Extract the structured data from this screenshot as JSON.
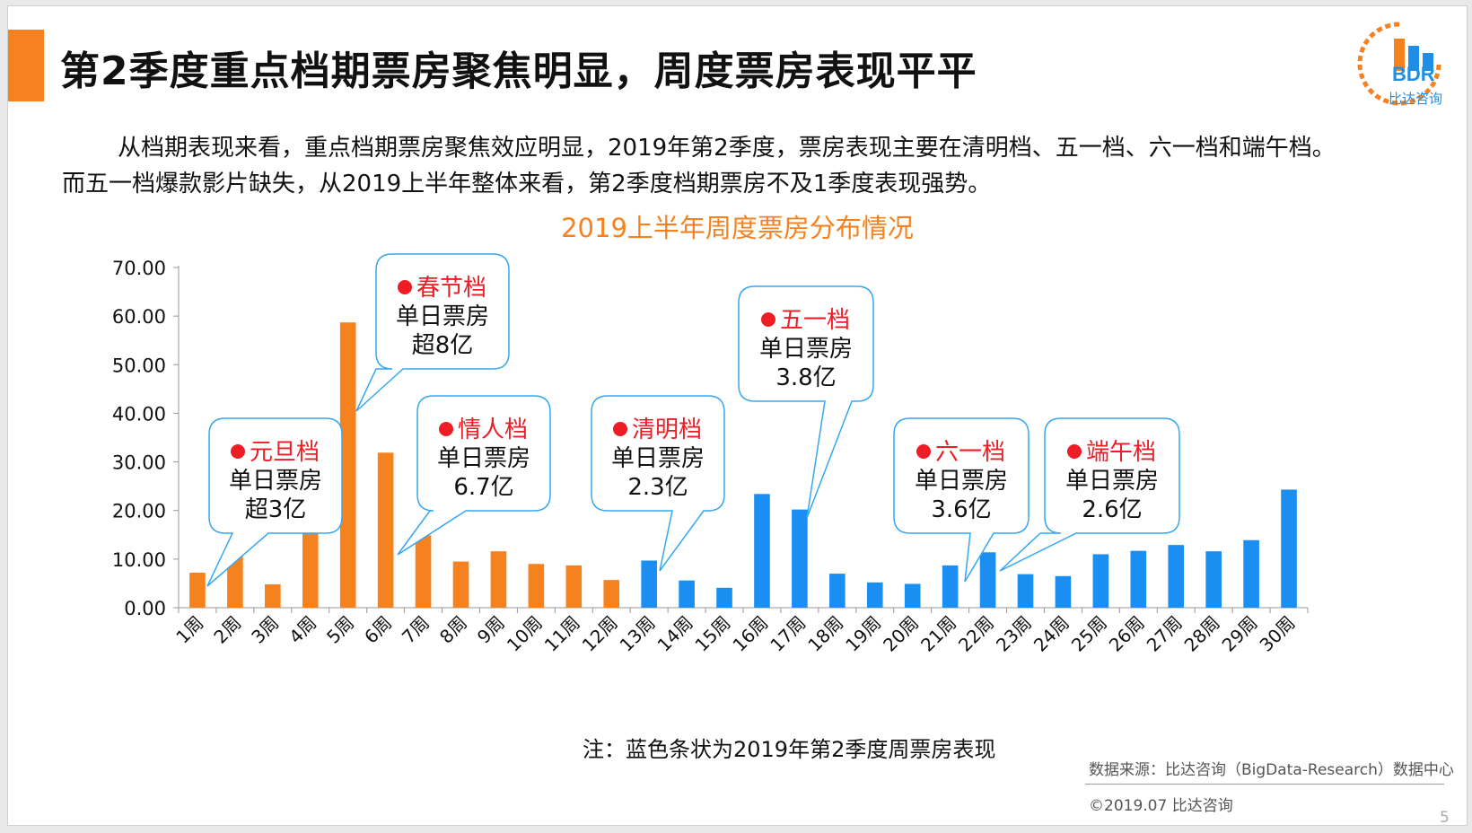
{
  "header": {
    "title": "第2季度重点档期票房聚焦明显，周度票房表现平平",
    "logo_text": "BDR",
    "logo_sub": "比达咨询"
  },
  "intro": {
    "line1": "从档期表现来看，重点档期票房聚焦效应明显，2019年第2季度，票房表现主要在清明档、五一档、六一档和端午档。",
    "line2": "而五一档爆款影片缺失，从2019上半年整体来看，第2季度档期票房不及1季度表现强势。"
  },
  "chart_data": {
    "type": "bar",
    "title": "2019上半年周度票房分布情况",
    "categories": [
      "1周",
      "2周",
      "3周",
      "4周",
      "5周",
      "6周",
      "7周",
      "8周",
      "9周",
      "10周",
      "11周",
      "12周",
      "13周",
      "14周",
      "15周",
      "16周",
      "17周",
      "18周",
      "19周",
      "20周",
      "21周",
      "22周",
      "23周",
      "24周",
      "25周",
      "26周",
      "27周",
      "28周",
      "29周",
      "30周"
    ],
    "values": [
      7.2,
      11.0,
      4.8,
      16.9,
      58.7,
      31.9,
      14.9,
      9.5,
      11.6,
      9.0,
      8.7,
      5.7,
      9.7,
      5.6,
      4.1,
      23.4,
      20.2,
      7.0,
      5.2,
      4.9,
      8.7,
      11.4,
      6.9,
      6.5,
      11.0,
      11.7,
      12.9,
      11.6,
      13.9,
      24.3
    ],
    "series_colors": [
      "#f5821f",
      "#f5821f",
      "#f5821f",
      "#f5821f",
      "#f5821f",
      "#f5821f",
      "#f5821f",
      "#f5821f",
      "#f5821f",
      "#f5821f",
      "#f5821f",
      "#f5821f",
      "#1b8ef2",
      "#1b8ef2",
      "#1b8ef2",
      "#1b8ef2",
      "#1b8ef2",
      "#1b8ef2",
      "#1b8ef2",
      "#1b8ef2",
      "#1b8ef2",
      "#1b8ef2",
      "#1b8ef2",
      "#1b8ef2",
      "#1b8ef2",
      "#1b8ef2",
      "#1b8ef2",
      "#1b8ef2",
      "#1b8ef2",
      "#1b8ef2"
    ],
    "ylim": [
      0,
      70
    ],
    "yticks": [
      "0.00",
      "10.00",
      "20.00",
      "30.00",
      "40.00",
      "50.00",
      "60.00",
      "70.00"
    ],
    "annotations": [
      {
        "holiday": "元旦档",
        "line2": "单日票房",
        "line3": "超3亿",
        "week": "1周"
      },
      {
        "holiday": "春节档",
        "line2": "单日票房",
        "line3": "超8亿",
        "week": "5周"
      },
      {
        "holiday": "情人档",
        "line2": "单日票房",
        "line3": "6.7亿",
        "week": "7周"
      },
      {
        "holiday": "清明档",
        "line2": "单日票房",
        "line3": "2.3亿",
        "week": "13周"
      },
      {
        "holiday": "五一档",
        "line2": "单日票房",
        "line3": "3.8亿",
        "week": "17周"
      },
      {
        "holiday": "六一档",
        "line2": "单日票房",
        "line3": "3.6亿",
        "week": "21周"
      },
      {
        "holiday": "端午档",
        "line2": "单日票房",
        "line3": "2.6亿",
        "week": "22周"
      }
    ],
    "colors": {
      "q1": "#f5821f",
      "q2": "#1b8ef2",
      "callout_border": "#35a8f0",
      "holiday_text": "#ee1c25"
    }
  },
  "footer": {
    "note": "注：蓝色条状为2019年第2季度周票房表现",
    "source": "数据来源：比达咨询（BigData-Research）数据中心",
    "copyright": "©2019.07 比达咨询",
    "page": "5"
  }
}
